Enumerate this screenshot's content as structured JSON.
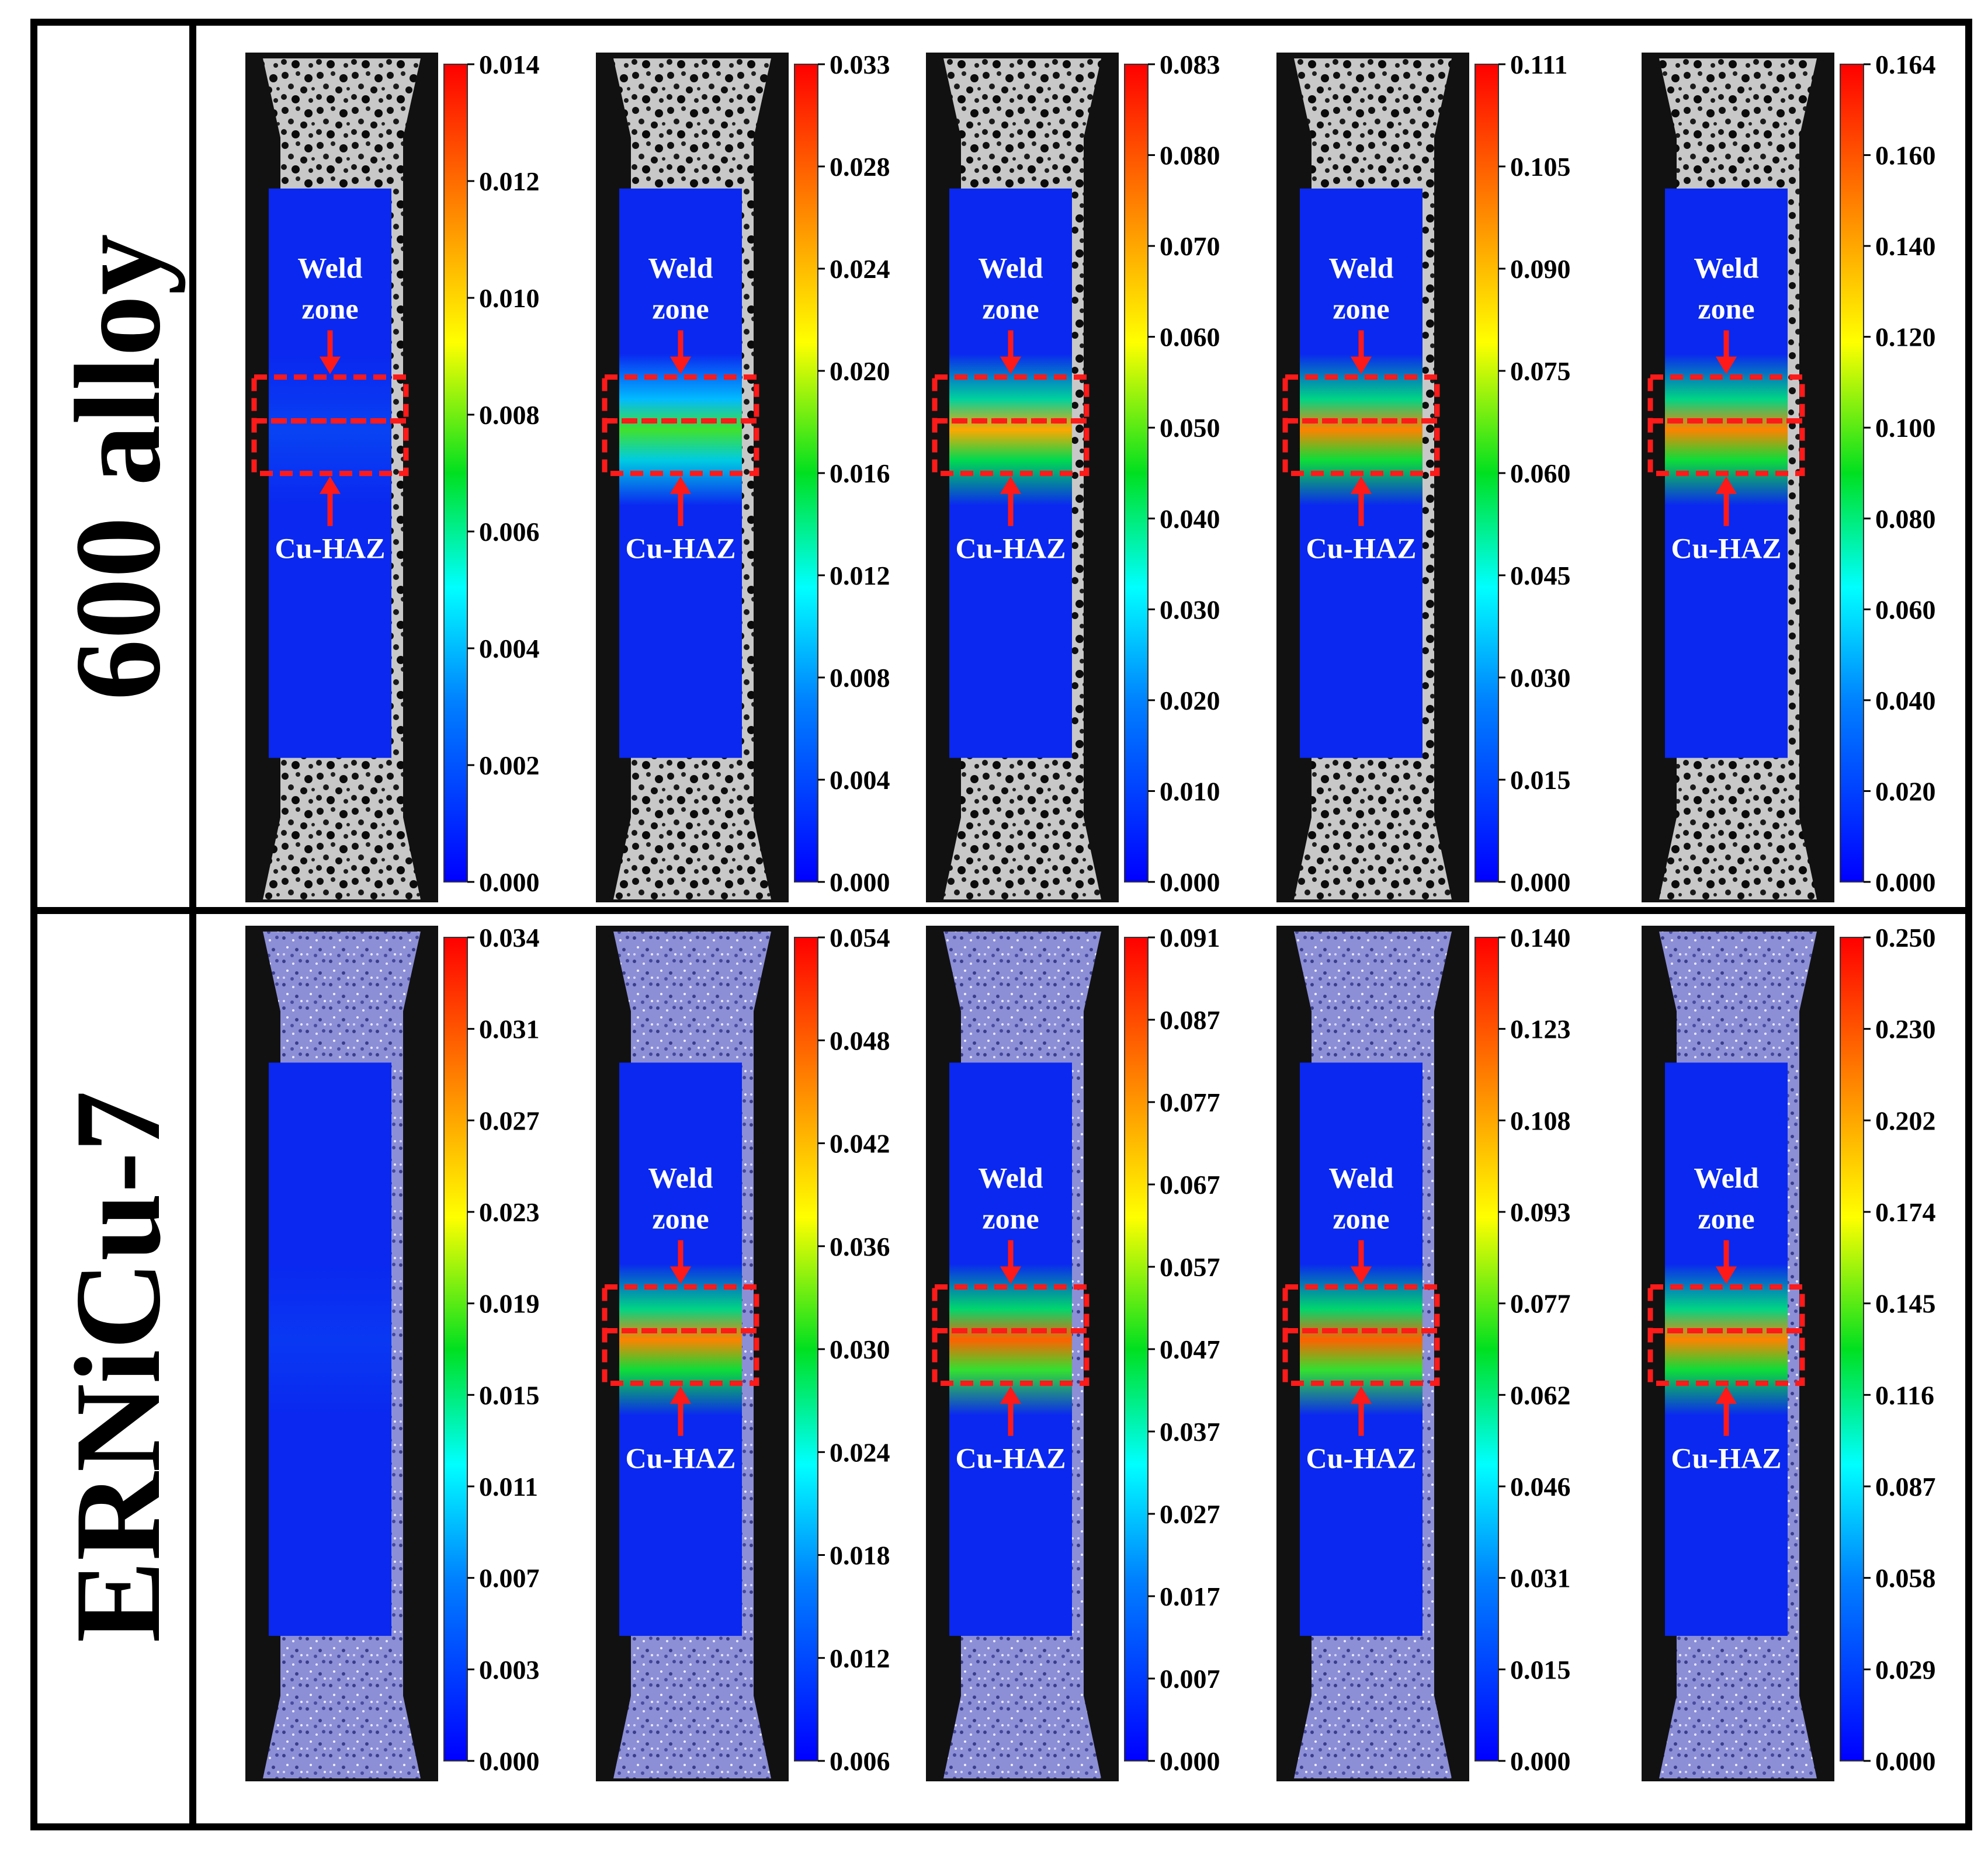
{
  "rows": [
    {
      "label": "600 alloy",
      "panels": [
        {
          "show_labels": true,
          "hot": 0.05,
          "ticks": [
            "0.014",
            "0.012",
            "0.010",
            "0.008",
            "0.006",
            "0.004",
            "0.002",
            "0.000"
          ]
        },
        {
          "show_labels": true,
          "hot": 0.55,
          "ticks": [
            "0.033",
            "0.028",
            "0.024",
            "0.020",
            "0.016",
            "0.012",
            "0.008",
            "0.004",
            "0.000"
          ]
        },
        {
          "show_labels": true,
          "hot": 0.8,
          "ticks": [
            "0.083",
            "0.080",
            "0.070",
            "0.060",
            "0.050",
            "0.040",
            "0.030",
            "0.020",
            "0.010",
            "0.000"
          ]
        },
        {
          "show_labels": true,
          "hot": 0.85,
          "ticks": [
            "0.111",
            "0.105",
            "0.090",
            "0.075",
            "0.060",
            "0.045",
            "0.030",
            "0.015",
            "0.000"
          ]
        },
        {
          "show_labels": true,
          "hot": 0.85,
          "ticks": [
            "0.164",
            "0.160",
            "0.140",
            "0.120",
            "0.100",
            "0.080",
            "0.060",
            "0.040",
            "0.020",
            "0.000"
          ]
        }
      ]
    },
    {
      "label": "ERNiCu-7",
      "panels": [
        {
          "show_labels": false,
          "hot": 0.03,
          "ticks": [
            "0.034",
            "0.031",
            "0.027",
            "0.023",
            "0.019",
            "0.015",
            "0.011",
            "0.007",
            "0.003",
            "0.000"
          ]
        },
        {
          "show_labels": true,
          "hot": 0.85,
          "ticks": [
            "0.054",
            "0.048",
            "0.042",
            "0.036",
            "0.030",
            "0.024",
            "0.018",
            "0.012",
            "0.006"
          ]
        },
        {
          "show_labels": true,
          "hot": 0.9,
          "ticks": [
            "0.091",
            "0.087",
            "0.077",
            "0.067",
            "0.057",
            "0.047",
            "0.037",
            "0.027",
            "0.017",
            "0.007",
            "0.000"
          ]
        },
        {
          "show_labels": true,
          "hot": 0.9,
          "ticks": [
            "0.140",
            "0.123",
            "0.108",
            "0.093",
            "0.077",
            "0.062",
            "0.046",
            "0.031",
            "0.015",
            "0.000"
          ]
        },
        {
          "show_labels": true,
          "hot": 0.85,
          "ticks": [
            "0.250",
            "0.230",
            "0.202",
            "0.174",
            "0.145",
            "0.116",
            "0.087",
            "0.058",
            "0.029",
            "0.000"
          ]
        }
      ]
    }
  ],
  "labels": {
    "weld": "Weld",
    "zone": "zone",
    "haz": "Cu-HAZ"
  },
  "colors": {
    "annotation_red": "#ff1a1a",
    "strain_low": "#0a28f0",
    "strain_high": "#ff1a00"
  }
}
